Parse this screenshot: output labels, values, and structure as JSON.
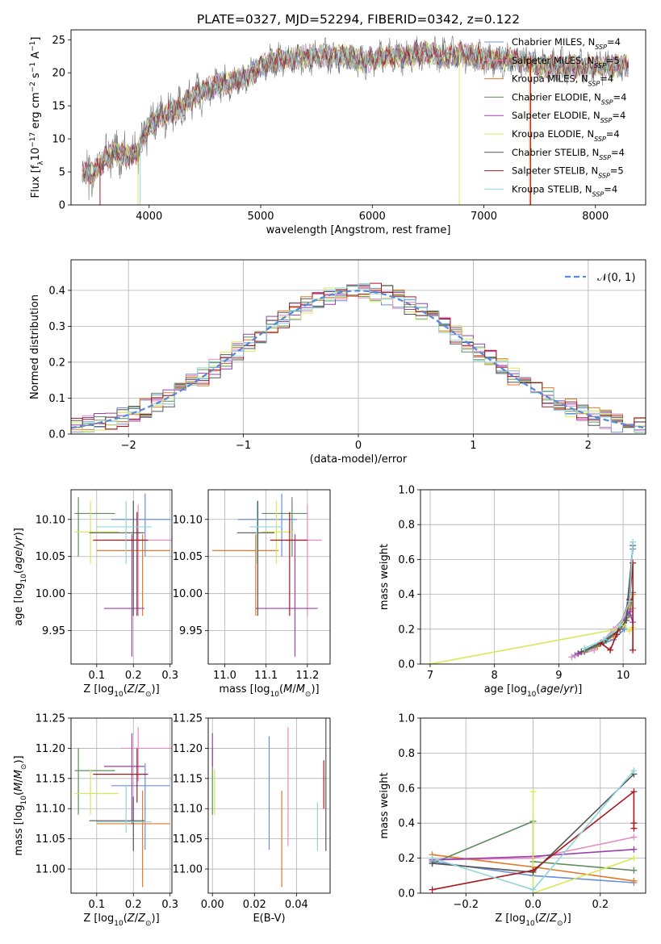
{
  "title": "PLATE=0327, MJD=52294, FIBERID=0342, z=0.122",
  "colors": {
    "Chabrier MILES": "#6a8fd6",
    "Salpeter MILES": "#e88bc2",
    "Kroupa MILES": "#e07a2a",
    "Chabrier ELODIE": "#5e8e5e",
    "Salpeter ELODIE": "#9a3fb0",
    "Kroupa ELODIE": "#d8e85a",
    "Chabrier STELIB": "#555555",
    "Salpeter STELIB": "#a8191e",
    "Kroupa STELIB": "#8fd6d8"
  },
  "chart_data": [
    {
      "type": "line",
      "id": "spectrum",
      "title": "PLATE=0327, MJD=52294, FIBERID=0342, z=0.122",
      "xlabel": "wavelength [Angstrom, rest frame]",
      "ylabel_parts": [
        "Flux [f",
        "λ",
        "10",
        "−17",
        " erg cm",
        "−2",
        " s",
        "−1",
        " A",
        "−1",
        "]"
      ],
      "xlim": [
        3300,
        8450
      ],
      "ylim": [
        0,
        26.5
      ],
      "xticks": [
        4000,
        5000,
        6000,
        7000,
        8000
      ],
      "yticks": [
        0,
        5,
        10,
        15,
        20,
        25
      ],
      "legend_position": "top-right",
      "series": [
        {
          "name": "Chabrier MILES",
          "label": "Chabrier MILES, N",
          "sub": "SSP",
          "suffix": "=4"
        },
        {
          "name": "Salpeter MILES",
          "label": "Salpeter MILES, N",
          "sub": "SSP",
          "suffix": "=5"
        },
        {
          "name": "Kroupa MILES",
          "label": "Kroupa MILES, N",
          "sub": "SSP",
          "suffix": "=4"
        },
        {
          "name": "Chabrier ELODIE",
          "label": "Chabrier ELODIE, N",
          "sub": "SSP",
          "suffix": "=4"
        },
        {
          "name": "Salpeter ELODIE",
          "label": "Salpeter ELODIE, N",
          "sub": "SSP",
          "suffix": "=4"
        },
        {
          "name": "Kroupa ELODIE",
          "label": "Kroupa ELODIE, N",
          "sub": "SSP",
          "suffix": "=4"
        },
        {
          "name": "Chabrier STELIB",
          "label": "Chabrier STELIB, N",
          "sub": "SSP",
          "suffix": "=4"
        },
        {
          "name": "Salpeter STELIB",
          "label": "Salpeter STELIB, N",
          "sub": "SSP",
          "suffix": "=5"
        },
        {
          "name": "Kroupa STELIB",
          "label": "Kroupa STELIB, N",
          "sub": "SSP",
          "suffix": "=4"
        }
      ],
      "data_envelope": {
        "x": [
          3400,
          3500,
          3600,
          3700,
          3800,
          3900,
          4000,
          4100,
          4200,
          4300,
          4400,
          4500,
          4600,
          4700,
          4800,
          4900,
          5000,
          5100,
          5200,
          5300,
          5400,
          5500,
          5600,
          5700,
          5800,
          5900,
          6000,
          6100,
          6200,
          6300,
          6400,
          6500,
          6600,
          6700,
          6800,
          6900,
          7000,
          7100,
          7200,
          7300,
          7400,
          7500
        ],
        "y": [
          5,
          4.8,
          7,
          8,
          7.5,
          8,
          12,
          13.5,
          14,
          15,
          16.5,
          17.5,
          18,
          18.5,
          19,
          19.5,
          21,
          21.5,
          22,
          22,
          22.5,
          22.5,
          22.5,
          22.5,
          22.5,
          21.5,
          22,
          22.5,
          22.5,
          22.5,
          22.8,
          23,
          22.5,
          22.5,
          22.8,
          22.5,
          22,
          22,
          22,
          22,
          21.5,
          21
        ]
      }
    },
    {
      "type": "line",
      "id": "residuals",
      "xlabel": "(data-model)/error",
      "ylabel": "Normed distribution",
      "xlim": [
        -2.5,
        2.5
      ],
      "ylim": [
        0,
        0.485
      ],
      "xticks": [
        -2,
        -1,
        0,
        1,
        2
      ],
      "yticks": [
        0.0,
        0.1,
        0.2,
        0.3,
        0.4
      ],
      "grid": true,
      "legend_position": "top-right",
      "legend_label": "𝒩(0, 1)",
      "bin_width": 0.1
    },
    {
      "type": "scatter",
      "id": "age-vs-Z",
      "xlabel": "Z [log10(Z/Z⊙)]",
      "ylabel": "age  [log10(age/yr)]",
      "xlim": [
        0.03,
        0.305
      ],
      "ylim": [
        9.905,
        10.14
      ],
      "xticks": [
        0.1,
        0.2,
        0.3
      ],
      "yticks": [
        9.95,
        10.0,
        10.05,
        10.1
      ],
      "grid": true
    },
    {
      "type": "scatter",
      "id": "age-vs-mass",
      "xlabel": "mass [log10(M/M⊙)]",
      "xlim": [
        10.96,
        11.255
      ],
      "ylim": [
        9.905,
        10.14
      ],
      "xticks": [
        11.0,
        11.1,
        11.2
      ],
      "yticks": [
        9.95,
        10.0,
        10.05,
        10.1
      ],
      "grid": true
    },
    {
      "type": "line",
      "id": "weight-vs-age",
      "xlabel": "age  [log10(age/yr)]",
      "ylabel": "mass weight",
      "xlim": [
        6.85,
        10.35
      ],
      "ylim": [
        0,
        1
      ],
      "xticks": [
        7,
        8,
        9,
        10
      ],
      "yticks": [
        0.0,
        0.2,
        0.4,
        0.6,
        0.8,
        1.0
      ],
      "grid": true
    },
    {
      "type": "scatter",
      "id": "mass-vs-Z",
      "xlabel": "Z [log10(Z/Z⊙)]",
      "ylabel": "mass [log10(M/M⊙)]",
      "xlim": [
        0.03,
        0.305
      ],
      "ylim": [
        10.96,
        11.25
      ],
      "xticks": [
        0.1,
        0.2,
        0.3
      ],
      "yticks": [
        11.0,
        11.05,
        11.1,
        11.15,
        11.2,
        11.25
      ],
      "grid": true
    },
    {
      "type": "scatter",
      "id": "mass-vs-ebv",
      "xlabel": "E(B-V)",
      "xlim": [
        -0.002,
        0.056
      ],
      "ylim": [
        10.96,
        11.25
      ],
      "xticks": [
        0.0,
        0.02,
        0.04
      ],
      "yticks": [
        11.0,
        11.05,
        11.1,
        11.15,
        11.2,
        11.25
      ],
      "grid": true
    },
    {
      "type": "line",
      "id": "weight-vs-Z",
      "xlabel": "Z [log10(Z/Z⊙)]",
      "ylabel": "mass weight",
      "xlim": [
        -0.335,
        0.335
      ],
      "ylim": [
        0,
        1
      ],
      "xticks": [
        -0.2,
        0.0,
        0.2
      ],
      "yticks": [
        0.0,
        0.2,
        0.4,
        0.6,
        0.8,
        1.0
      ],
      "grid": true
    }
  ],
  "models": [
    {
      "name": "Chabrier MILES",
      "Z": 0.232,
      "Zerr": [
        0.14,
        0.3
      ],
      "age": 10.1,
      "ageErr": [
        10.05,
        10.135
      ],
      "mass": 11.138,
      "massErr": [
        11.032,
        11.175
      ],
      "ebv": 0.027,
      "ebvErr": [
        11.032,
        11.22
      ],
      "wa": [
        [
          9.25,
          0.05
        ],
        [
          9.55,
          0.1
        ],
        [
          9.85,
          0.14
        ],
        [
          10.02,
          0.2
        ],
        [
          10.15,
          0.66
        ]
      ],
      "wz": [
        [
          -0.3,
          0.18
        ],
        [
          0.0,
          0.1
        ],
        [
          0.3,
          0.06
        ]
      ]
    },
    {
      "name": "Salpeter MILES",
      "Z": 0.213,
      "Zerr": [
        0.165,
        0.305
      ],
      "age": 10.072,
      "ageErr": [
        9.97,
        10.12
      ],
      "mass": 11.2,
      "massErr": [
        11.145,
        11.235
      ],
      "ebv": 0.036,
      "ebvErr": [
        11.038,
        11.235
      ],
      "wa": [
        [
          9.2,
          0.04
        ],
        [
          9.55,
          0.08
        ],
        [
          9.85,
          0.2
        ],
        [
          10.05,
          0.28
        ],
        [
          10.15,
          0.32
        ]
      ],
      "wz": [
        [
          -0.3,
          0.19
        ],
        [
          0.0,
          0.2
        ],
        [
          0.3,
          0.32
        ]
      ]
    },
    {
      "name": "Kroupa MILES",
      "Z": 0.225,
      "Zerr": [
        0.1,
        0.3
      ],
      "age": 10.058,
      "ageErr": [
        9.97,
        10.08
      ],
      "mass": 11.075,
      "massErr": [
        10.97,
        11.13
      ],
      "ebv": 0.033,
      "ebvErr": [
        10.97,
        11.13
      ],
      "wa": [
        [
          9.3,
          0.06
        ],
        [
          9.6,
          0.1
        ],
        [
          9.85,
          0.16
        ],
        [
          10.0,
          0.22
        ],
        [
          10.15,
          0.4
        ]
      ],
      "wz": [
        [
          -0.3,
          0.22
        ],
        [
          0.0,
          0.15
        ],
        [
          0.3,
          0.07
        ]
      ]
    },
    {
      "name": "Chabrier ELODIE",
      "Z": 0.05,
      "Zerr": [
        0.04,
        0.15
      ],
      "age": 10.108,
      "ageErr": [
        10.05,
        10.13
      ],
      "mass": 11.163,
      "massErr": [
        11.09,
        11.2
      ],
      "ebv": 0.0,
      "ebvErr": [
        11.09,
        11.2
      ],
      "wa": [
        [
          9.4,
          0.07
        ],
        [
          9.7,
          0.12
        ],
        [
          9.95,
          0.2
        ],
        [
          10.1,
          0.28
        ],
        [
          10.15,
          0.41
        ]
      ],
      "wz": [
        [
          -0.3,
          0.17
        ],
        [
          0.0,
          0.41
        ],
        [
          0.0,
          0.18
        ],
        [
          0.3,
          0.13
        ]
      ]
    },
    {
      "name": "Salpeter ELODIE",
      "Z": 0.196,
      "Zerr": [
        0.12,
        0.23
      ],
      "age": 9.98,
      "ageErr": [
        9.915,
        10.08
      ],
      "mass": 11.17,
      "massErr": [
        11.075,
        11.225
      ],
      "ebv": 0.0,
      "ebvErr": [
        11.17,
        11.225
      ],
      "wa": [
        [
          9.3,
          0.06
        ],
        [
          9.65,
          0.12
        ],
        [
          9.95,
          0.22
        ],
        [
          10.1,
          0.3
        ],
        [
          10.15,
          0.24
        ]
      ],
      "wz": [
        [
          -0.3,
          0.19
        ],
        [
          0.0,
          0.21
        ],
        [
          0.3,
          0.25
        ]
      ]
    },
    {
      "name": "Kroupa ELODIE",
      "Z": 0.083,
      "Zerr": [
        0.04,
        0.16
      ],
      "age": 10.083,
      "ageErr": [
        10.04,
        10.125
      ],
      "mass": 11.125,
      "massErr": [
        11.09,
        11.165
      ],
      "ebv": 0.001,
      "ebvErr": [
        11.09,
        11.165
      ],
      "wa": [
        [
          7.0,
          0.0
        ],
        [
          9.9,
          0.2
        ],
        [
          10.0,
          0.23
        ],
        [
          10.1,
          0.19
        ],
        [
          10.15,
          0.21
        ]
      ],
      "wz": [
        [
          0.0,
          0.58
        ],
        [
          0.0,
          0.0
        ],
        [
          0.3,
          0.2
        ]
      ]
    },
    {
      "name": "Chabrier STELIB",
      "Z": 0.2,
      "Zerr": [
        0.08,
        0.23
      ],
      "age": 10.082,
      "ageErr": [
        9.97,
        10.125
      ],
      "mass": 11.08,
      "massErr": [
        11.03,
        11.12
      ],
      "ebv": 0.054,
      "ebvErr": [
        11.03,
        11.25
      ],
      "wa": [
        [
          9.35,
          0.07
        ],
        [
          9.7,
          0.13
        ],
        [
          9.95,
          0.2
        ],
        [
          10.05,
          0.25
        ],
        [
          10.15,
          0.68
        ]
      ],
      "wz": [
        [
          -0.3,
          0.17
        ],
        [
          0.0,
          0.12
        ],
        [
          0.3,
          0.68
        ]
      ]
    },
    {
      "name": "Salpeter STELIB",
      "Z": 0.21,
      "Zerr": [
        0.09,
        0.24
      ],
      "age": 10.072,
      "ageErr": [
        9.97,
        10.11
      ],
      "mass": 11.157,
      "massErr": [
        11.11,
        11.2
      ],
      "ebv": 0.053,
      "ebvErr": [
        11.1,
        11.18
      ],
      "wa": [
        [
          9.65,
          0.12
        ],
        [
          9.8,
          0.08
        ],
        [
          9.9,
          0.17
        ],
        [
          10.1,
          0.37
        ],
        [
          10.15,
          0.58
        ],
        [
          10.15,
          0.08
        ]
      ],
      "wz": [
        [
          -0.3,
          0.02
        ],
        [
          0.0,
          0.13
        ],
        [
          0.3,
          0.58
        ],
        [
          0.3,
          0.4
        ],
        [
          0.3,
          0.37
        ]
      ]
    },
    {
      "name": "Kroupa STELIB",
      "Z": 0.18,
      "Zerr": [
        0.1,
        0.25
      ],
      "age": 10.09,
      "ageErr": [
        10.04,
        10.125
      ],
      "mass": 11.078,
      "massErr": [
        11.06,
        11.14
      ],
      "ebv": 0.05,
      "ebvErr": [
        11.03,
        11.11
      ],
      "wa": [
        [
          9.4,
          0.09
        ],
        [
          9.7,
          0.14
        ],
        [
          9.95,
          0.22
        ],
        [
          10.1,
          0.36
        ],
        [
          10.15,
          0.7
        ]
      ],
      "wz": [
        [
          -0.3,
          0.2
        ],
        [
          0.0,
          0.02
        ],
        [
          0.3,
          0.7
        ]
      ]
    }
  ]
}
